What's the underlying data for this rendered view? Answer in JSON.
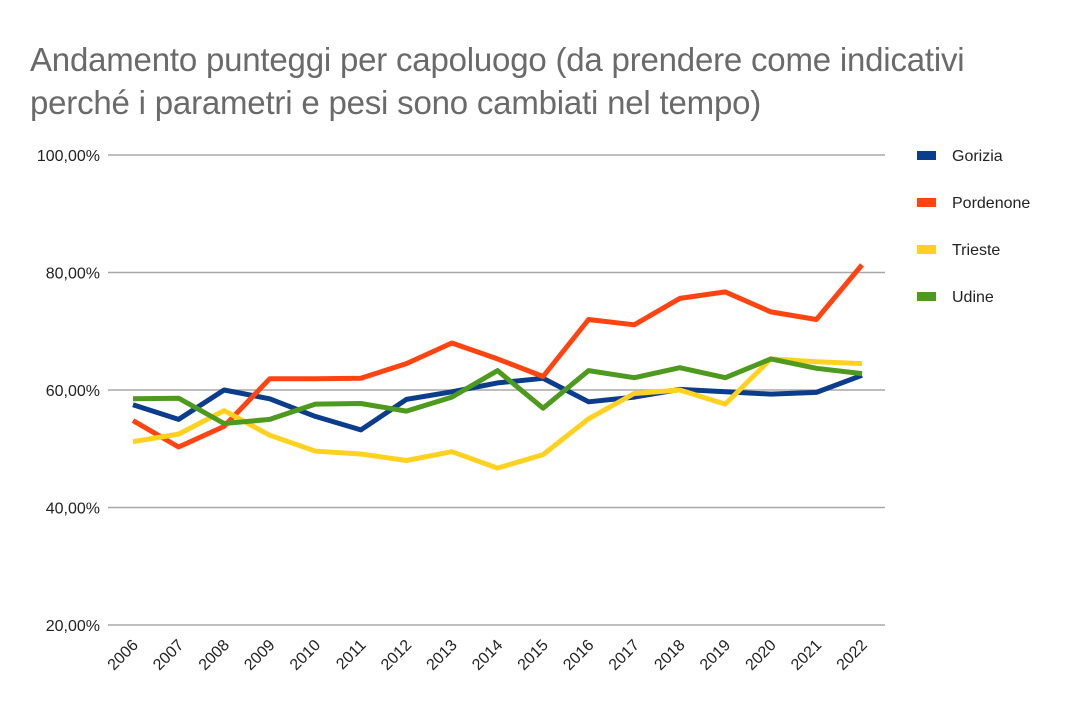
{
  "chart_data": {
    "type": "line",
    "title": "Andamento punteggi per capoluogo (da prendere come indicativi perché i parametri e pesi sono cambiati nel tempo)",
    "categories": [
      "2006",
      "2007",
      "2008",
      "2009",
      "2010",
      "2011",
      "2012",
      "2013",
      "2014",
      "2015",
      "2016",
      "2017",
      "2018",
      "2019",
      "2020",
      "2021",
      "2022"
    ],
    "ylim": [
      20,
      100
    ],
    "yticks": [
      20,
      40,
      60,
      80,
      100
    ],
    "ytick_labels": [
      "20,00%",
      "40,00%",
      "60,00%",
      "80,00%",
      "100,00%"
    ],
    "grid": true,
    "legend_position": "right",
    "series": [
      {
        "name": "Gorizia",
        "color": "#0b3d8c",
        "values": [
          57.5,
          55.0,
          60.0,
          58.5,
          55.5,
          53.2,
          58.4,
          59.7,
          61.2,
          62.0,
          58.0,
          58.8,
          60.1,
          59.7,
          59.3,
          59.6,
          62.5
        ]
      },
      {
        "name": "Pordenone",
        "color": "#ff4411",
        "values": [
          54.8,
          50.3,
          53.8,
          61.9,
          61.9,
          62.0,
          64.5,
          68.0,
          65.3,
          62.3,
          72.0,
          71.1,
          75.6,
          76.7,
          73.3,
          72.0,
          81.3
        ]
      },
      {
        "name": "Trieste",
        "color": "#ffd21f",
        "values": [
          51.2,
          52.5,
          56.5,
          52.3,
          49.6,
          49.1,
          48.0,
          49.5,
          46.7,
          49.0,
          55.1,
          59.4,
          60.0,
          57.6,
          65.3,
          64.8,
          64.5
        ]
      },
      {
        "name": "Udine",
        "color": "#4e9a1f",
        "values": [
          58.5,
          58.6,
          54.3,
          55.0,
          57.6,
          57.7,
          56.4,
          58.8,
          63.3,
          56.9,
          63.3,
          62.1,
          63.8,
          62.1,
          65.3,
          63.7,
          62.8
        ]
      }
    ]
  }
}
